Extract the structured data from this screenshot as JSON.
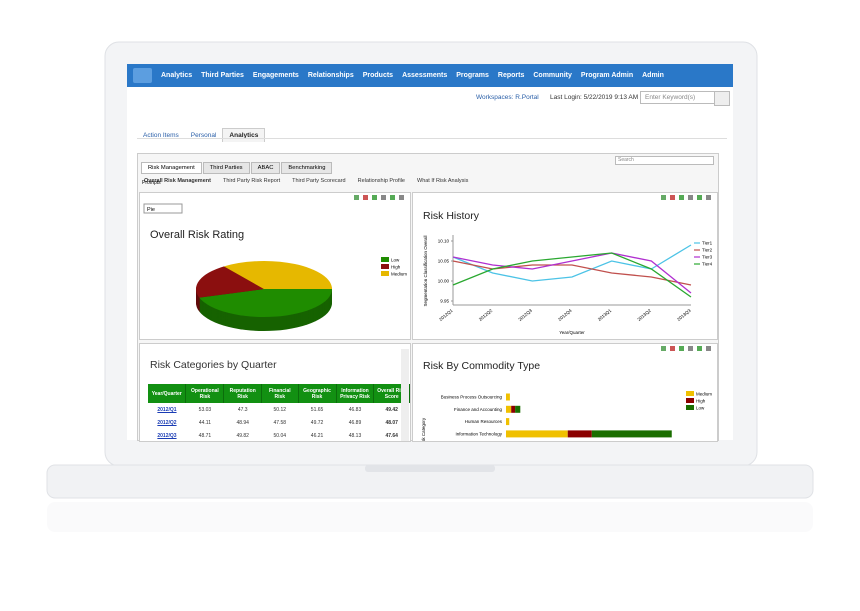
{
  "nav": {
    "items": [
      "Analytics",
      "Third Parties",
      "Engagements",
      "Relationships",
      "Products",
      "Assessments",
      "Programs",
      "Reports",
      "Community",
      "Program Admin",
      "Admin"
    ]
  },
  "header": {
    "workspaces": "Workspaces: R.Portal",
    "last_login": "Last Login: 5/22/2019 9:13 AM",
    "search_placeholder": "Enter Keyword(s)"
  },
  "tabs": [
    "Action Items",
    "Personal",
    "Analytics"
  ],
  "dashboard": {
    "tabs": [
      "Risk Management",
      "Third Parties",
      "ABAC",
      "Benchmarking"
    ],
    "search_placeholder": "Search",
    "subtabs": [
      "Overall Risk Management",
      "Third Party Risk Report",
      "Third Party Scorecard",
      "Relationship Profile",
      "What If Risk Analysis"
    ],
    "prompts": "Prompts"
  },
  "table": {
    "title": "Risk Categories by Quarter",
    "columns": [
      "Year/Quarter",
      "Operational Risk",
      "Reputation Risk",
      "Financial Risk",
      "Geographic Risk",
      "Information Privacy Risk",
      "Overall Risk Score"
    ],
    "rows": [
      [
        "2012/Q1",
        "53.03",
        "47.3",
        "50.12",
        "51.65",
        "46.83",
        "49.42"
      ],
      [
        "2012/Q2",
        "44.11",
        "48.94",
        "47.58",
        "49.72",
        "46.89",
        "48.07"
      ],
      [
        "2012/Q3",
        "48.71",
        "49.82",
        "50.04",
        "46.21",
        "48.13",
        "47.64"
      ]
    ]
  },
  "chart_data": [
    {
      "type": "pie",
      "title": "Overall Risk Rating",
      "selector": "Pie",
      "categories": [
        "Low",
        "High",
        "Medium"
      ],
      "values": [
        45,
        20,
        35
      ],
      "colors": [
        "#1f8c00",
        "#8b0f0f",
        "#e6b800"
      ]
    },
    {
      "type": "line",
      "title": "Risk History",
      "y_label": "Segmentation Classification Overall",
      "x_label": "Year/Quarter",
      "categories": [
        "2012Q1",
        "2012Q2",
        "2012Q3",
        "2012Q4",
        "2013Q1",
        "2013Q2",
        "2013Q3"
      ],
      "series": [
        {
          "name": "Tier1",
          "color": "#4cc3e6",
          "values": [
            10.06,
            10.02,
            10.0,
            10.01,
            10.05,
            10.03,
            10.09
          ]
        },
        {
          "name": "Tier2",
          "color": "#c0504d",
          "values": [
            10.05,
            10.03,
            10.04,
            10.04,
            10.02,
            10.01,
            9.99
          ]
        },
        {
          "name": "Tier3",
          "color": "#b02fd0",
          "values": [
            10.06,
            10.04,
            10.03,
            10.05,
            10.07,
            10.05,
            9.97
          ]
        },
        {
          "name": "Tier4",
          "color": "#2aa830",
          "values": [
            9.99,
            10.03,
            10.05,
            10.06,
            10.07,
            10.03,
            9.96
          ]
        }
      ],
      "ylim": [
        9.95,
        10.1
      ],
      "yticks": [
        9.95,
        {
          "value": 10,
          "label": "10.00"
        },
        10.05,
        {
          "value": 10.1,
          "label": "10.10"
        }
      ]
    },
    {
      "type": "bar",
      "orientation": "horizontal",
      "stacked": true,
      "title": "Risk By Commodity Type",
      "y_label": "Risk Category",
      "categories": [
        "Business Process Outsourcing",
        "Finance and Accounting",
        "Human Resources",
        "Information Technology"
      ],
      "series": [
        {
          "name": "Medium",
          "color": "#f0c000",
          "values": [
            0.6,
            0.8,
            0.5,
            9.5
          ]
        },
        {
          "name": "High",
          "color": "#8b0000",
          "values": [
            0,
            0.6,
            0,
            3.7
          ]
        },
        {
          "name": "Low",
          "color": "#1a6e00",
          "values": [
            0,
            0.8,
            0,
            12.3
          ]
        }
      ],
      "xlim": [
        0,
        30
      ]
    }
  ]
}
